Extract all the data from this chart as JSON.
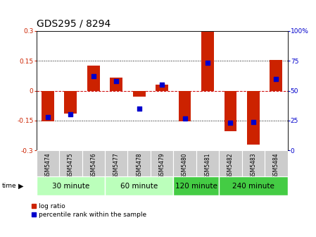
{
  "title": "GDS295 / 8294",
  "samples": [
    "GSM5474",
    "GSM5475",
    "GSM5476",
    "GSM5477",
    "GSM5478",
    "GSM5479",
    "GSM5480",
    "GSM5481",
    "GSM5482",
    "GSM5483",
    "GSM5484"
  ],
  "log_ratio": [
    -0.155,
    -0.115,
    0.125,
    0.065,
    -0.03,
    0.03,
    -0.155,
    0.295,
    -0.205,
    -0.27,
    0.155
  ],
  "percentile": [
    28,
    30,
    62,
    58,
    35,
    55,
    27,
    73,
    23,
    24,
    60
  ],
  "groups": [
    {
      "label": "30 minute",
      "color": "#bbffbb",
      "span": [
        0,
        2
      ]
    },
    {
      "label": "60 minute",
      "color": "#bbffbb",
      "span": [
        3,
        5
      ]
    },
    {
      "label": "120 minute",
      "color": "#44cc44",
      "span": [
        6,
        7
      ]
    },
    {
      "label": "240 minute",
      "color": "#44cc44",
      "span": [
        8,
        10
      ]
    }
  ],
  "bar_color": "#cc2200",
  "dot_color": "#0000cc",
  "ylim": [
    -0.3,
    0.3
  ],
  "y2lim": [
    0,
    100
  ],
  "yticks": [
    -0.3,
    -0.15,
    0,
    0.15,
    0.3
  ],
  "y2ticks": [
    0,
    25,
    50,
    75,
    100
  ],
  "hlines_dotted": [
    -0.15,
    0.15
  ],
  "hline_dashed": 0,
  "bar_width": 0.55,
  "dot_size": 22,
  "title_fontsize": 10,
  "tick_fontsize": 6.5,
  "legend_fontsize": 6.5,
  "group_label_fontsize": 7.5,
  "sample_fontsize": 5.5
}
